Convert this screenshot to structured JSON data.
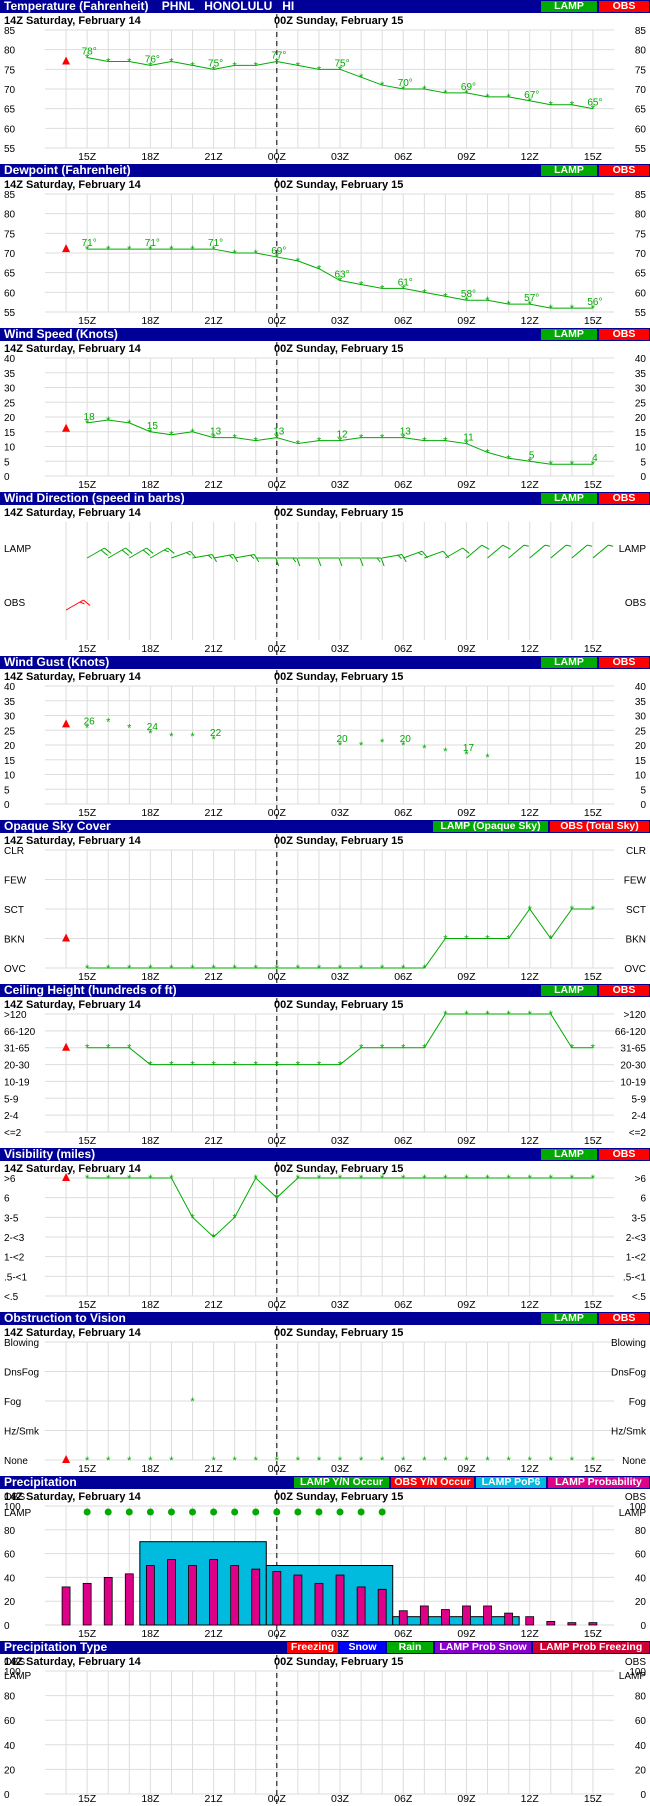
{
  "header": {
    "station_title": "Temperature (Fahrenheit)    PHNL   HONOLULU   HI",
    "date_left": "14Z Saturday, February 14",
    "date_right": "00Z Sunday, February 15"
  },
  "colors": {
    "header_bg": "#000099",
    "lamp": "#00aa00",
    "obs": "#ff0000",
    "pop6": "#00bbdd",
    "probability": "#dd0088",
    "snow": "#0000ff",
    "prob_snow": "#8800cc",
    "prob_freezing": "#cc0033"
  },
  "time_ticks": [
    "15Z",
    "18Z",
    "21Z",
    "00Z",
    "03Z",
    "06Z",
    "09Z",
    "12Z",
    "15Z"
  ],
  "chart_data": [
    {
      "id": "temperature",
      "type": "line",
      "title": "Temperature (Fahrenheit)    PHNL   HONOLULU   HI",
      "legend": [
        "LAMP",
        "OBS"
      ],
      "legend_colors": [
        "lamp",
        "obs"
      ],
      "ylim": [
        55,
        85
      ],
      "y_ticks": [
        55,
        60,
        65,
        70,
        75,
        80,
        85
      ],
      "y_labels": [
        "55",
        "60",
        "65",
        "70",
        "75",
        "80",
        "85"
      ],
      "obs": {
        "x": 14,
        "y": 77
      },
      "series": [
        {
          "name": "LAMP",
          "x": [
            15,
            16,
            17,
            18,
            19,
            20,
            21,
            22,
            23,
            24,
            25,
            26,
            27,
            28,
            29,
            30,
            31,
            32,
            33,
            34,
            35,
            36,
            37,
            38,
            39
          ],
          "values": [
            78,
            77,
            77,
            76,
            77,
            76,
            75,
            76,
            76,
            77,
            76,
            75,
            75,
            73,
            71,
            70,
            70,
            69,
            69,
            68,
            68,
            67,
            66,
            66,
            65
          ]
        }
      ],
      "point_labels": [
        {
          "x": 15,
          "y": 78,
          "text": "78°"
        },
        {
          "x": 18,
          "y": 76,
          "text": "76°"
        },
        {
          "x": 21,
          "y": 75,
          "text": "75°"
        },
        {
          "x": 24,
          "y": 77,
          "text": "77°"
        },
        {
          "x": 27,
          "y": 75,
          "text": "75°"
        },
        {
          "x": 30,
          "y": 70,
          "text": "70°"
        },
        {
          "x": 33,
          "y": 69,
          "text": "69°"
        },
        {
          "x": 36,
          "y": 67,
          "text": "67°"
        },
        {
          "x": 39,
          "y": 65,
          "text": "65°"
        }
      ]
    },
    {
      "id": "dewpoint",
      "type": "line",
      "title": "Dewpoint (Fahrenheit)",
      "legend": [
        "LAMP",
        "OBS"
      ],
      "legend_colors": [
        "lamp",
        "obs"
      ],
      "ylim": [
        55,
        85
      ],
      "y_ticks": [
        55,
        60,
        65,
        70,
        75,
        80,
        85
      ],
      "y_labels": [
        "55",
        "60",
        "65",
        "70",
        "75",
        "80",
        "85"
      ],
      "obs": {
        "x": 14,
        "y": 71
      },
      "series": [
        {
          "name": "LAMP",
          "x": [
            15,
            16,
            17,
            18,
            19,
            20,
            21,
            22,
            23,
            24,
            25,
            26,
            27,
            28,
            29,
            30,
            31,
            32,
            33,
            34,
            35,
            36,
            37,
            38,
            39
          ],
          "values": [
            71,
            71,
            71,
            71,
            71,
            71,
            71,
            70,
            70,
            69,
            68,
            66,
            63,
            62,
            61,
            61,
            60,
            59,
            58,
            58,
            57,
            57,
            56,
            56,
            56
          ]
        }
      ],
      "point_labels": [
        {
          "x": 15,
          "y": 71,
          "text": "71°"
        },
        {
          "x": 18,
          "y": 71,
          "text": "71°"
        },
        {
          "x": 21,
          "y": 71,
          "text": "71°"
        },
        {
          "x": 24,
          "y": 69,
          "text": "69°"
        },
        {
          "x": 27,
          "y": 63,
          "text": "63°"
        },
        {
          "x": 30,
          "y": 61,
          "text": "61°"
        },
        {
          "x": 33,
          "y": 58,
          "text": "58°"
        },
        {
          "x": 36,
          "y": 57,
          "text": "57°"
        },
        {
          "x": 39,
          "y": 56,
          "text": "56°"
        }
      ]
    },
    {
      "id": "wind_speed",
      "type": "line",
      "title": "Wind Speed (Knots)",
      "legend": [
        "LAMP",
        "OBS"
      ],
      "legend_colors": [
        "lamp",
        "obs"
      ],
      "ylim": [
        0,
        40
      ],
      "y_ticks": [
        0,
        5,
        10,
        15,
        20,
        25,
        30,
        35,
        40
      ],
      "y_labels": [
        "0",
        "5",
        "10",
        "15",
        "20",
        "25",
        "30",
        "35",
        "40"
      ],
      "obs": {
        "x": 14,
        "y": 16
      },
      "series": [
        {
          "name": "LAMP",
          "x": [
            15,
            16,
            17,
            18,
            19,
            20,
            21,
            22,
            23,
            24,
            25,
            26,
            27,
            28,
            29,
            30,
            31,
            32,
            33,
            34,
            35,
            36,
            37,
            38,
            39
          ],
          "values": [
            18,
            19,
            18,
            15,
            14,
            15,
            13,
            13,
            12,
            13,
            11,
            12,
            12,
            13,
            13,
            13,
            12,
            12,
            11,
            8,
            6,
            5,
            4,
            4,
            4
          ]
        }
      ],
      "point_labels": [
        {
          "x": 15,
          "y": 18,
          "text": "18"
        },
        {
          "x": 18,
          "y": 15,
          "text": "15"
        },
        {
          "x": 21,
          "y": 13,
          "text": "13"
        },
        {
          "x": 24,
          "y": 13,
          "text": "13"
        },
        {
          "x": 27,
          "y": 12,
          "text": "12"
        },
        {
          "x": 30,
          "y": 13,
          "text": "13"
        },
        {
          "x": 33,
          "y": 11,
          "text": "11"
        },
        {
          "x": 36,
          "y": 5,
          "text": "5"
        },
        {
          "x": 39,
          "y": 4,
          "text": "4"
        }
      ]
    },
    {
      "id": "wind_direction",
      "type": "scatter",
      "title": "Wind Direction (speed in barbs)",
      "legend": [
        "LAMP",
        "OBS"
      ],
      "legend_colors": [
        "lamp",
        "obs"
      ],
      "row_labels": [
        "LAMP",
        "OBS"
      ],
      "series": [
        {
          "name": "LAMP",
          "x": [
            15,
            16,
            17,
            18,
            19,
            20,
            21,
            22,
            23,
            24,
            25,
            26,
            27,
            28,
            29,
            30,
            31,
            32,
            33,
            34,
            35,
            36,
            37,
            38,
            39
          ],
          "values": [
            60,
            60,
            60,
            60,
            70,
            80,
            80,
            80,
            90,
            90,
            90,
            90,
            90,
            90,
            80,
            70,
            70,
            60,
            50,
            50,
            50,
            50,
            50,
            50,
            50
          ]
        }
      ],
      "obs": {
        "x": 14,
        "direction": 60
      }
    },
    {
      "id": "wind_gust",
      "type": "scatter",
      "title": "Wind Gust (Knots)",
      "legend": [
        "LAMP",
        "OBS"
      ],
      "legend_colors": [
        "lamp",
        "obs"
      ],
      "ylim": [
        0,
        40
      ],
      "y_ticks": [
        0,
        5,
        10,
        15,
        20,
        25,
        30,
        35,
        40
      ],
      "y_labels": [
        "0",
        "5",
        "10",
        "15",
        "20",
        "25",
        "30",
        "35",
        "40"
      ],
      "obs": {
        "x": 14,
        "y": 27
      },
      "series": [
        {
          "name": "LAMP",
          "x": [
            15,
            16,
            17,
            18,
            19,
            20,
            21,
            27,
            28,
            29,
            30,
            31,
            32,
            33,
            34
          ],
          "values": [
            26,
            28,
            26,
            24,
            23,
            23,
            22,
            20,
            20,
            21,
            20,
            19,
            18,
            17,
            16
          ]
        }
      ],
      "point_labels": [
        {
          "x": 15,
          "y": 26,
          "text": "26"
        },
        {
          "x": 18,
          "y": 24,
          "text": "24"
        },
        {
          "x": 21,
          "y": 22,
          "text": "22"
        },
        {
          "x": 27,
          "y": 20,
          "text": "20"
        },
        {
          "x": 30,
          "y": 20,
          "text": "20"
        },
        {
          "x": 33,
          "y": 17,
          "text": "17"
        }
      ]
    },
    {
      "id": "sky_cover",
      "type": "line",
      "title": "Opaque Sky Cover",
      "legend": [
        "LAMP (Opaque Sky)",
        "OBS (Total Sky)"
      ],
      "legend_colors": [
        "lamp",
        "obs"
      ],
      "ylim": [
        0,
        4
      ],
      "y_ticks": [
        0,
        1,
        2,
        3,
        4
      ],
      "y_labels": [
        "OVC",
        "BKN",
        "SCT",
        "FEW",
        "CLR"
      ],
      "obs": {
        "x": 14,
        "y": 1
      },
      "series": [
        {
          "name": "LAMP",
          "x": [
            15,
            16,
            17,
            18,
            19,
            20,
            21,
            22,
            23,
            24,
            25,
            26,
            27,
            28,
            29,
            30,
            31,
            32,
            33,
            34,
            35,
            36,
            37,
            38,
            39
          ],
          "values": [
            0,
            0,
            0,
            0,
            0,
            0,
            0,
            0,
            0,
            0,
            0,
            0,
            0,
            0,
            0,
            0,
            0,
            1,
            1,
            1,
            1,
            2,
            1,
            2,
            2
          ]
        }
      ]
    },
    {
      "id": "ceiling",
      "type": "line",
      "title": "Ceiling Height (hundreds of ft)",
      "legend": [
        "LAMP",
        "OBS"
      ],
      "legend_colors": [
        "lamp",
        "obs"
      ],
      "ylim": [
        0,
        7
      ],
      "y_ticks": [
        0,
        1,
        2,
        3,
        4,
        5,
        6,
        7
      ],
      "y_labels": [
        "<=2",
        "2-4",
        "5-9",
        "10-19",
        "20-30",
        "31-65",
        "66-120",
        ">120"
      ],
      "obs": {
        "x": 14,
        "y": 5
      },
      "series": [
        {
          "name": "LAMP",
          "x": [
            15,
            16,
            17,
            18,
            19,
            20,
            21,
            22,
            23,
            24,
            25,
            26,
            27,
            28,
            29,
            30,
            31,
            32,
            33,
            34,
            35,
            36,
            37,
            38,
            39
          ],
          "values": [
            5,
            5,
            5,
            4,
            4,
            4,
            4,
            4,
            4,
            4,
            4,
            4,
            4,
            5,
            5,
            5,
            5,
            7,
            7,
            7,
            7,
            7,
            7,
            5,
            5
          ]
        }
      ]
    },
    {
      "id": "visibility",
      "type": "line",
      "title": "Visibility (miles)",
      "legend": [
        "LAMP",
        "OBS"
      ],
      "legend_colors": [
        "lamp",
        "obs"
      ],
      "ylim": [
        0,
        6
      ],
      "y_ticks": [
        0,
        1,
        2,
        3,
        4,
        5,
        6
      ],
      "y_labels": [
        "<.5",
        ".5-<1",
        "1-<2",
        "2-<3",
        "3-5",
        "6",
        ">6"
      ],
      "obs": {
        "x": 14,
        "y": 6
      },
      "series": [
        {
          "name": "LAMP",
          "x": [
            15,
            16,
            17,
            18,
            19,
            20,
            21,
            22,
            23,
            24,
            25,
            26,
            27,
            28,
            29,
            30,
            31,
            32,
            33,
            34,
            35,
            36,
            37,
            38,
            39
          ],
          "values": [
            6,
            6,
            6,
            6,
            6,
            4,
            3,
            4,
            6,
            5,
            6,
            6,
            6,
            6,
            6,
            6,
            6,
            6,
            6,
            6,
            6,
            6,
            6,
            6,
            6
          ]
        }
      ]
    },
    {
      "id": "obstruction",
      "type": "scatter",
      "title": "Obstruction to Vision",
      "legend": [
        "LAMP",
        "OBS"
      ],
      "legend_colors": [
        "lamp",
        "obs"
      ],
      "ylim": [
        0,
        4
      ],
      "y_ticks": [
        0,
        1,
        2,
        3,
        4
      ],
      "y_labels": [
        "None",
        "Hz/Smk",
        "Fog",
        "DnsFog",
        "Blowing"
      ],
      "obs": {
        "x": 14,
        "y": 0
      },
      "series": [
        {
          "name": "LAMP",
          "x": [
            15,
            16,
            17,
            18,
            19,
            20,
            21,
            22,
            23,
            24,
            25,
            26,
            27,
            28,
            29,
            30,
            31,
            32,
            33,
            34,
            35,
            36,
            37,
            38,
            39
          ],
          "values": [
            0,
            0,
            0,
            0,
            0,
            2,
            0,
            0,
            0,
            0,
            0,
            0,
            0,
            0,
            0,
            0,
            0,
            0,
            0,
            0,
            0,
            0,
            0,
            0,
            0
          ]
        }
      ]
    },
    {
      "id": "precipitation",
      "type": "bar",
      "title": "Precipitation",
      "legend": [
        "LAMP Y/N Occur",
        "OBS Y/N Occur",
        "LAMP PoP6",
        "LAMP Probability"
      ],
      "legend_colors": [
        "lamp",
        "obs",
        "pop6",
        "probability"
      ],
      "ylim": [
        0,
        100
      ],
      "y_ticks": [
        0,
        20,
        40,
        60,
        80,
        100
      ],
      "y_labels": [
        "0",
        "20",
        "40",
        "60",
        "80",
        "100"
      ],
      "row_labels": [
        "LAMP",
        "OBS"
      ],
      "lamp_occur_x": [
        15,
        16,
        17,
        18,
        19,
        20,
        21,
        22,
        23,
        24,
        25,
        26,
        27,
        28,
        29
      ],
      "pop6": [
        {
          "x0": 17.5,
          "x1": 23.5,
          "value": 70
        },
        {
          "x0": 23.5,
          "x1": 29.5,
          "value": 50
        },
        {
          "x0": 29.5,
          "x1": 35.5,
          "value": 7
        }
      ],
      "series": [
        {
          "name": "LAMP Probability",
          "x": [
            14,
            15,
            16,
            17,
            18,
            19,
            20,
            21,
            22,
            23,
            24,
            25,
            26,
            27,
            28,
            29,
            30,
            31,
            32,
            33,
            34,
            35,
            36,
            37,
            38,
            39
          ],
          "values": [
            32,
            35,
            40,
            43,
            50,
            55,
            50,
            55,
            50,
            47,
            45,
            42,
            35,
            42,
            32,
            30,
            12,
            16,
            13,
            16,
            16,
            10,
            7,
            3,
            2,
            2
          ]
        }
      ]
    },
    {
      "id": "precip_type",
      "type": "bar",
      "title": "Precipitation Type",
      "legend": [
        "Freezing",
        "Snow",
        "Rain",
        "LAMP Prob Snow",
        "LAMP Prob Freezing"
      ],
      "legend_colors": [
        "obs",
        "snow",
        "lamp",
        "prob_snow",
        "prob_freezing"
      ],
      "ylim": [
        0,
        100
      ],
      "y_ticks": [
        0,
        20,
        40,
        60,
        80,
        100
      ],
      "y_labels": [
        "0",
        "20",
        "40",
        "60",
        "80",
        "100"
      ],
      "row_labels": [
        "OBS",
        "LAMP"
      ],
      "series": []
    }
  ]
}
